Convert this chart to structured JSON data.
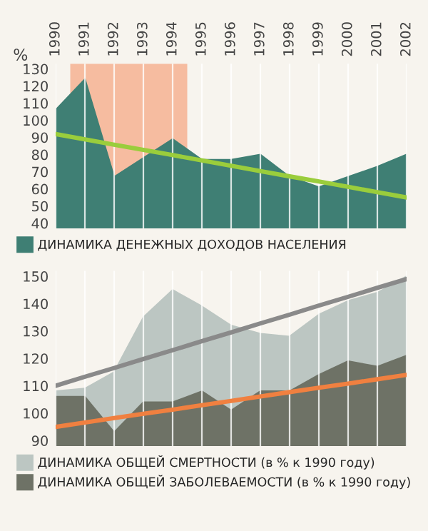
{
  "chart_data": [
    {
      "type": "area",
      "ylabel": "%",
      "categories": [
        "1990",
        "1991",
        "1992",
        "1993",
        "1994",
        "1995",
        "1996",
        "1997",
        "1998",
        "1999",
        "2000",
        "2001",
        "2002"
      ],
      "ylim": [
        37,
        133
      ],
      "yticks": [
        40,
        50,
        60,
        70,
        80,
        90,
        100,
        110,
        120,
        130
      ],
      "grid": "x",
      "legend": "bottom",
      "bands": [
        {
          "axis": "x",
          "from": "1991",
          "to": "1994",
          "color": "#f6bca0"
        }
      ],
      "series": [
        {
          "name": "ДИНАМИКА ДЕНЕЖНЫХ ДОХОДОВ НАСЕЛЕНИЯ",
          "color": "#3f7f74",
          "values": [
            106,
            124,
            67,
            78,
            89,
            77,
            77,
            80,
            67,
            61,
            67,
            73,
            80
          ]
        },
        {
          "type": "line",
          "color": "#9acd3c",
          "values": [
            92,
            88.9,
            85.8,
            82.8,
            79.7,
            76.6,
            73.5,
            70.4,
            67.3,
            64.3,
            61.2,
            58.1,
            55
          ]
        }
      ]
    },
    {
      "type": "area",
      "categories": [
        null,
        null,
        null,
        null,
        null,
        null,
        null,
        null,
        null,
        null,
        null,
        null,
        null
      ],
      "ylim": [
        88,
        152
      ],
      "yticks": [
        90,
        100,
        110,
        120,
        130,
        140,
        150
      ],
      "grid": "x",
      "legend": "bottom",
      "tick_labels": "y",
      "series": [
        {
          "name": "ДИНАМИКА ОБЩЕЙ СМЕРТНОСТИ (в % к 1990 году)",
          "color": "#bcc6c2",
          "values": [
            108,
            109,
            115,
            135,
            145,
            139,
            132,
            129,
            128,
            136,
            141,
            144,
            150
          ]
        },
        {
          "name": "ДИНАМИКА ОБЩЕЙ ЗАБОЛЕВАЕМОСТИ (в % к 1990 году)",
          "color": "#6e7266",
          "values": [
            106,
            106,
            93,
            104,
            104,
            108,
            101,
            108,
            108,
            114,
            119,
            117,
            121
          ]
        },
        {
          "type": "line",
          "color": "#8a8a8a",
          "values": [
            110,
            113.3,
            116.5,
            119.8,
            123,
            126.3,
            129.5,
            132.8,
            136,
            139.3,
            142.5,
            145.8,
            149
          ]
        },
        {
          "type": "line",
          "color": "#f08040",
          "values": [
            95,
            96.6,
            98.2,
            99.8,
            101.3,
            102.9,
            104.5,
            106.1,
            107.7,
            109.3,
            110.8,
            112.4,
            114
          ]
        }
      ]
    }
  ]
}
